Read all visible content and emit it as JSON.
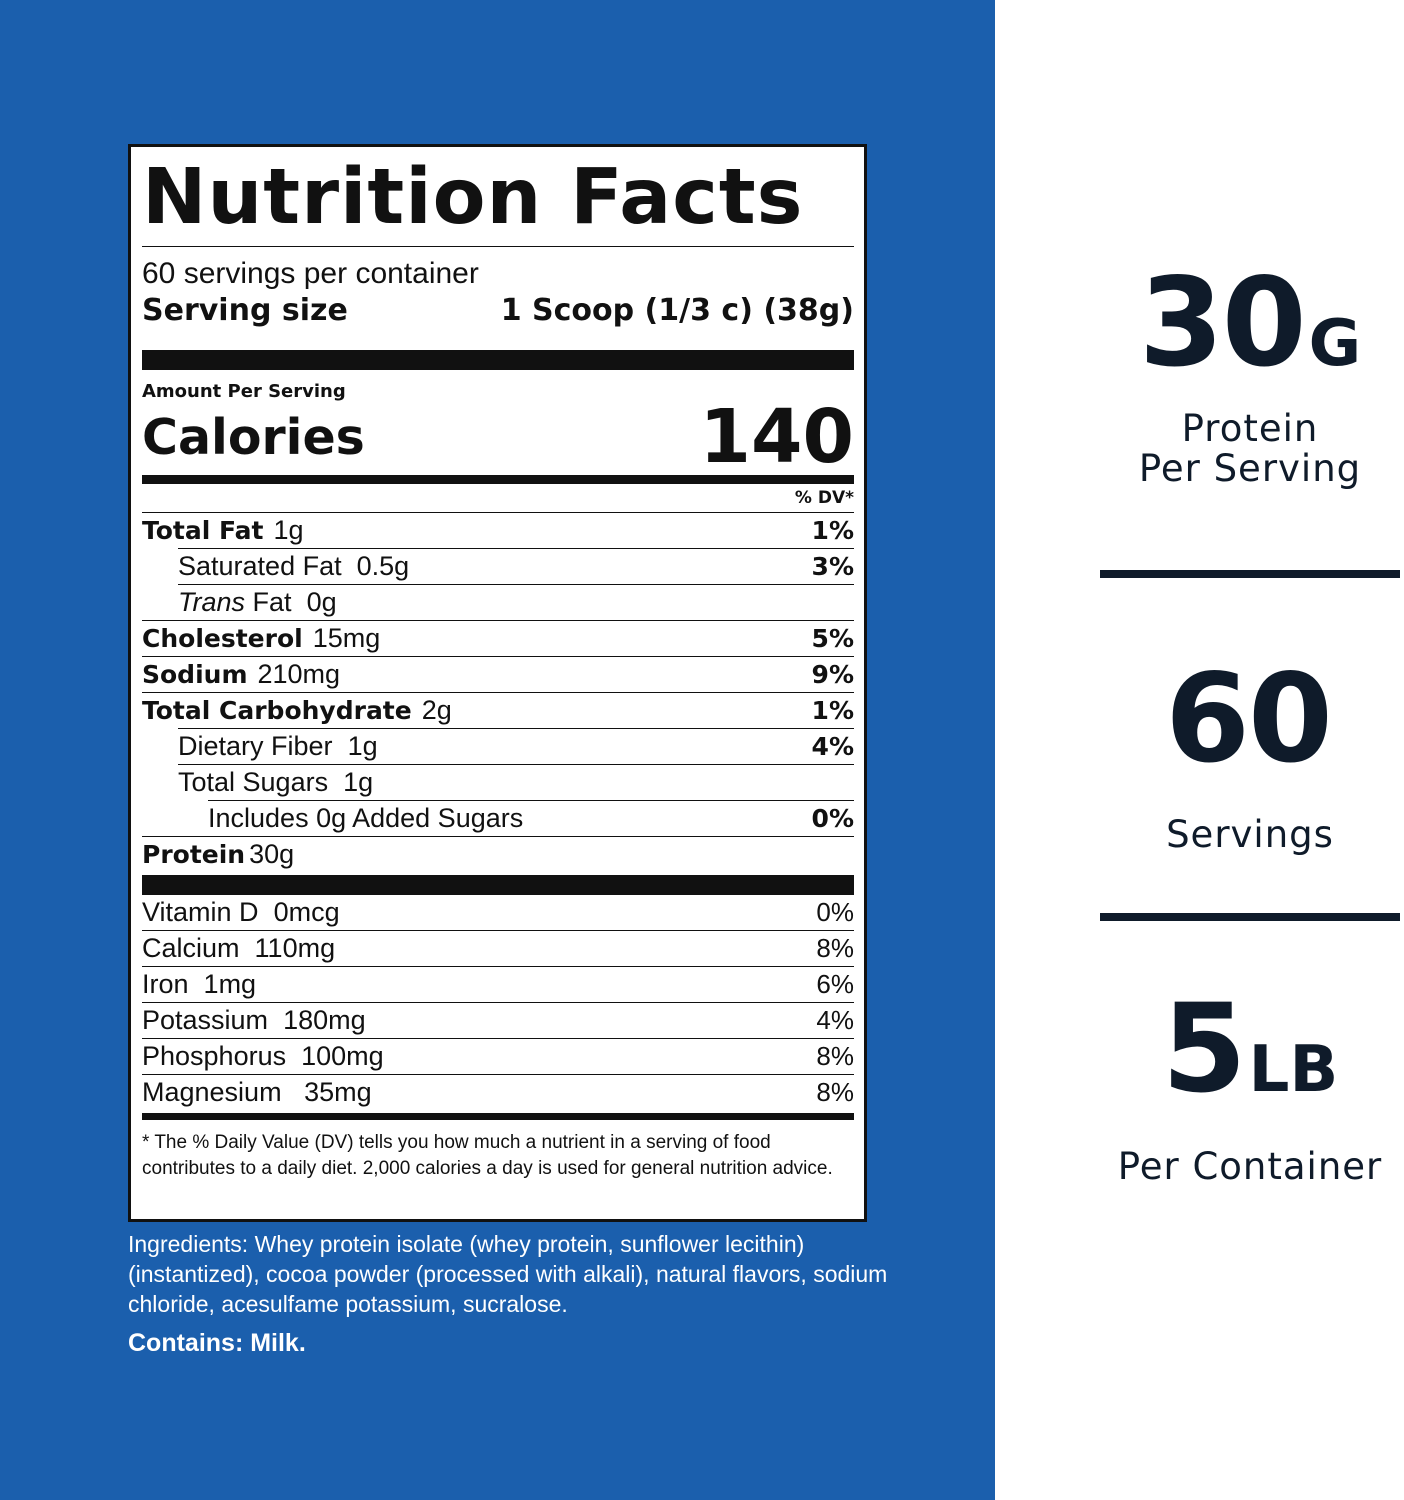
{
  "label": {
    "title": "Nutrition Facts",
    "servings_per_container": "60 servings per container",
    "serving_size_label": "Serving size",
    "serving_size_value": "1 Scoop (1/3 c) (38g)",
    "amount_per_serving": "Amount Per Serving",
    "calories_label": "Calories",
    "calories_value": "140",
    "dv_header": "% DV*",
    "nutrients": [
      {
        "name": "Total Fat",
        "amount": "1g",
        "dv": "1%"
      },
      {
        "name": "Saturated Fat",
        "amount": "0.5g",
        "dv": "3%"
      },
      {
        "name_italic": "Trans",
        "name": "Fat",
        "amount": "0g",
        "dv": ""
      },
      {
        "name": "Cholesterol",
        "amount": "15mg",
        "dv": "5%"
      },
      {
        "name": "Sodium",
        "amount": "210mg",
        "dv": "9%"
      },
      {
        "name": "Total Carbohydrate",
        "amount": "2g",
        "dv": "1%"
      },
      {
        "name": "Dietary Fiber",
        "amount": "1g",
        "dv": "4%"
      },
      {
        "name": "Total Sugars",
        "amount": "1g",
        "dv": ""
      },
      {
        "name": "Includes 0g Added Sugars",
        "amount": "",
        "dv": "0%"
      },
      {
        "name": "Protein",
        "amount": "30g",
        "dv": ""
      }
    ],
    "vitamins": [
      {
        "name": "Vitamin D",
        "amount": "0mcg",
        "dv": "0%"
      },
      {
        "name": "Calcium",
        "amount": "110mg",
        "dv": "8%"
      },
      {
        "name": "Iron",
        "amount": "1mg",
        "dv": "6%"
      },
      {
        "name": "Potassium",
        "amount": "180mg",
        "dv": "4%"
      },
      {
        "name": "Phosphorus",
        "amount": "100mg",
        "dv": "8%"
      },
      {
        "name": "Magnesium",
        "amount": "35mg",
        "dv": "8%"
      }
    ],
    "footnote": "* The % Daily Value (DV) tells you how much a nutrient in a serving of food contributes to a daily diet. 2,000 calories a day is used for general nutrition advice."
  },
  "ingredients": "Ingredients: Whey protein isolate (whey protein, sunflower lecithin)(instantized), cocoa powder (processed with alkali), natural flavors, sodium chloride, acesulfame potassium, sucralose.",
  "contains": "Contains: Milk.",
  "stats": [
    {
      "value": "30",
      "unit": "G",
      "caption_line1": "Protein",
      "caption_line2": "Per Serving"
    },
    {
      "value": "60",
      "unit": "",
      "caption_line1": "Servings",
      "caption_line2": ""
    },
    {
      "value": "5",
      "unit": "LB",
      "caption_line1": "Per Container",
      "caption_line2": ""
    }
  ],
  "colors": {
    "panel_blue": "#1b5fad",
    "stat_navy": "#0f1b2a"
  }
}
